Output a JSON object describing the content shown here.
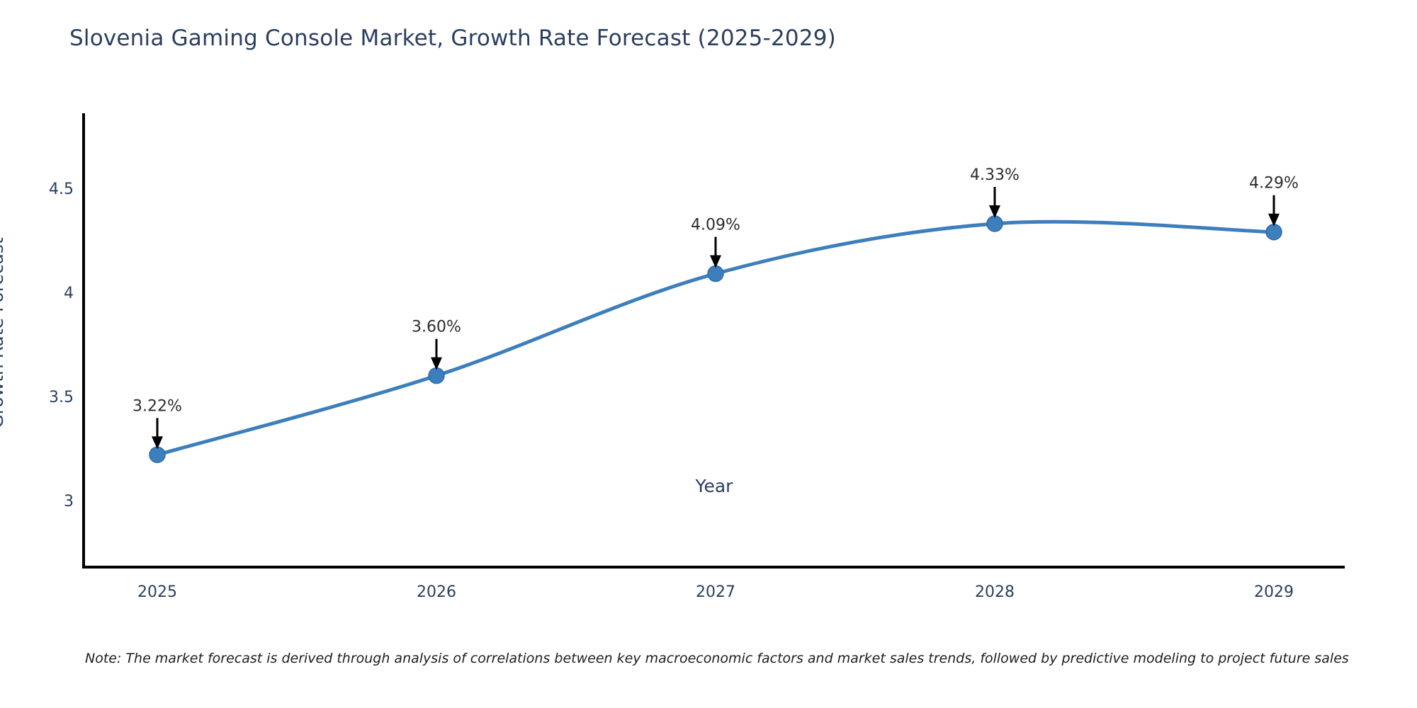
{
  "title": "Slovenia Gaming Console Market, Growth Rate Forecast (2025-2029)",
  "chart_data": {
    "type": "line",
    "line_shape": "spline",
    "x": [
      2025,
      2026,
      2027,
      2028,
      2029
    ],
    "series": [
      {
        "name": "Growth Rate Forecast",
        "values": [
          3.22,
          3.6,
          4.09,
          4.33,
          4.29
        ]
      }
    ],
    "point_labels": [
      "3.22%",
      "3.60%",
      "4.09%",
      "4.33%",
      "4.29%"
    ],
    "xlabel": "Year",
    "ylabel": "Growth Rate Forecast",
    "xticks": [
      "2025",
      "2026",
      "2027",
      "2028",
      "2029"
    ],
    "yticks": [
      "3",
      "3.5",
      "4",
      "4.5"
    ],
    "ytick_values": [
      3,
      3.5,
      4,
      4.5
    ],
    "ylim": [
      2.68,
      4.85
    ],
    "grid": false,
    "legend_position": "none",
    "annotation_arrows": true
  },
  "note": "Note: The market forecast is derived through analysis of correlations between key macroeconomic factors and market sales trends, followed by predictive modeling to project future sales",
  "colors": {
    "line": "#3d7ebd",
    "marker": "#3d7ebd",
    "marker_edge": "#2f6ea8",
    "title_text": "#2a3f5f",
    "axis_text": "#2a3f5f",
    "annotation_text": "#2d2d2d",
    "arrow": "#000000",
    "axis_line": "#000000",
    "background": "#ffffff"
  }
}
